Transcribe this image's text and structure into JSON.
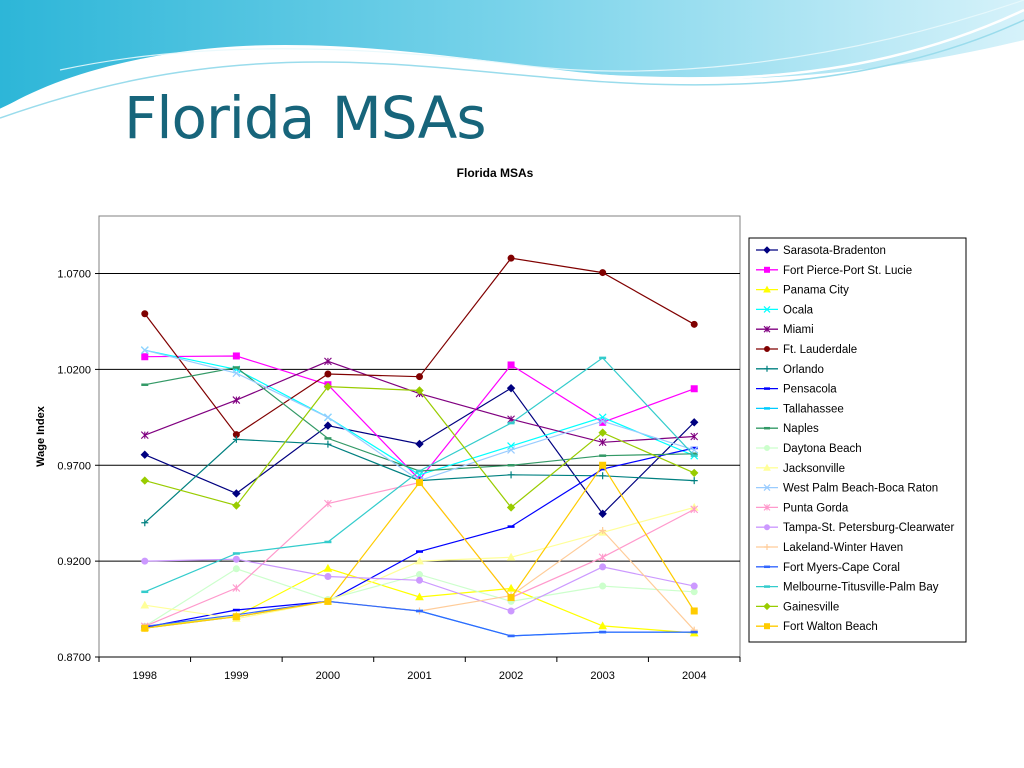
{
  "slide": {
    "title": "Florida MSAs"
  },
  "chart_data": {
    "type": "line",
    "title": "Florida MSAs",
    "xlabel": "",
    "ylabel": "Wage Index",
    "categories": [
      "1998",
      "1999",
      "2000",
      "2001",
      "2002",
      "2003",
      "2004"
    ],
    "ylim": [
      0.87,
      1.1
    ],
    "yticks": [
      0.87,
      0.92,
      0.97,
      1.02,
      1.07
    ],
    "ytick_labels": [
      "0.8700",
      "0.9200",
      "0.9700",
      "1.0200",
      "1.0700"
    ],
    "grid": "horizontal major gridlines",
    "legend_position": "right",
    "series": [
      {
        "name": "Sarasota-Bradenton",
        "color": "#000080",
        "marker": "diamond",
        "values": [
          0.9755,
          0.9553,
          0.9907,
          0.9811,
          1.0102,
          0.9447,
          0.9924
        ]
      },
      {
        "name": "Fort Pierce-Port St. Lucie",
        "color": "#ff00ff",
        "marker": "square",
        "values": [
          1.0266,
          1.027,
          1.012,
          0.9625,
          1.0223,
          0.9924,
          1.0099
        ]
      },
      {
        "name": "Panama City",
        "color": "#ffff00",
        "marker": "triangle",
        "values": [
          0.8855,
          0.8913,
          0.9162,
          0.9013,
          0.9058,
          0.8862,
          0.8825
        ]
      },
      {
        "name": "Ocala",
        "color": "#00ffff",
        "marker": "x",
        "values": [
          1.03,
          1.02,
          0.995,
          0.965,
          0.98,
          0.995,
          0.975
        ]
      },
      {
        "name": "Miami",
        "color": "#800080",
        "marker": "star",
        "values": [
          0.9857,
          1.004,
          1.0242,
          1.0074,
          0.994,
          0.982,
          0.985
        ]
      },
      {
        "name": "Ft. Lauderdale",
        "color": "#800000",
        "marker": "circle",
        "values": [
          1.049,
          0.986,
          1.0176,
          1.0162,
          1.078,
          1.0705,
          1.0435
        ]
      },
      {
        "name": "Orlando",
        "color": "#008080",
        "marker": "plus",
        "values": [
          0.94,
          0.9835,
          0.981,
          0.962,
          0.965,
          0.9645,
          0.962
        ]
      },
      {
        "name": "Pensacola",
        "color": "#0000ff",
        "marker": "dash",
        "values": [
          0.8855,
          0.8945,
          0.899,
          0.925,
          0.938,
          0.968,
          0.979
        ]
      },
      {
        "name": "Tallahassee",
        "color": "#00ccff",
        "marker": "dash",
        "values": [
          0.885,
          0.891,
          0.899,
          0.894,
          0.881,
          0.883,
          0.883
        ]
      },
      {
        "name": "Naples",
        "color": "#339966",
        "marker": "dash",
        "values": [
          1.012,
          1.021,
          0.984,
          0.967,
          0.97,
          0.975,
          0.976
        ]
      },
      {
        "name": "Daytona Beach",
        "color": "#ccffcc",
        "marker": "circle",
        "values": [
          0.886,
          0.916,
          0.9,
          0.913,
          0.899,
          0.907,
          0.904
        ]
      },
      {
        "name": "Jacksonville",
        "color": "#ffff99",
        "marker": "triangle",
        "values": [
          0.897,
          0.89,
          0.899,
          0.92,
          0.922,
          0.935,
          0.948
        ]
      },
      {
        "name": "West Palm Beach-Boca Raton",
        "color": "#99ccff",
        "marker": "x",
        "values": [
          1.03,
          1.018,
          0.995,
          0.962,
          0.978,
          0.993,
          0.978
        ]
      },
      {
        "name": "Punta Gorda",
        "color": "#ff99cc",
        "marker": "star",
        "values": [
          0.886,
          0.906,
          0.95,
          0.961,
          0.901,
          0.922,
          0.947
        ]
      },
      {
        "name": "Tampa-St. Petersburg-Clearwater",
        "color": "#cc99ff",
        "marker": "circle",
        "values": [
          0.92,
          0.921,
          0.912,
          0.91,
          0.894,
          0.917,
          0.907
        ]
      },
      {
        "name": "Lakeland-Winter Haven",
        "color": "#ffcc99",
        "marker": "plus",
        "values": [
          0.885,
          0.891,
          0.899,
          0.894,
          0.902,
          0.936,
          0.884
        ]
      },
      {
        "name": "Fort Myers-Cape Coral",
        "color": "#3366ff",
        "marker": "dash",
        "values": [
          0.886,
          0.892,
          0.899,
          0.894,
          0.881,
          0.883,
          0.883
        ]
      },
      {
        "name": "Melbourne-Titusville-Palm Bay",
        "color": "#33cccc",
        "marker": "dash",
        "values": [
          0.904,
          0.924,
          0.93,
          0.967,
          0.992,
          1.026,
          0.975
        ]
      },
      {
        "name": "Gainesville",
        "color": "#99cc00",
        "marker": "diamond",
        "values": [
          0.962,
          0.949,
          1.011,
          1.009,
          0.948,
          0.987,
          0.966
        ]
      },
      {
        "name": "Fort Walton Beach",
        "color": "#ffcc00",
        "marker": "square",
        "values": [
          0.885,
          0.891,
          0.899,
          0.961,
          0.901,
          0.97,
          0.894
        ]
      }
    ]
  }
}
